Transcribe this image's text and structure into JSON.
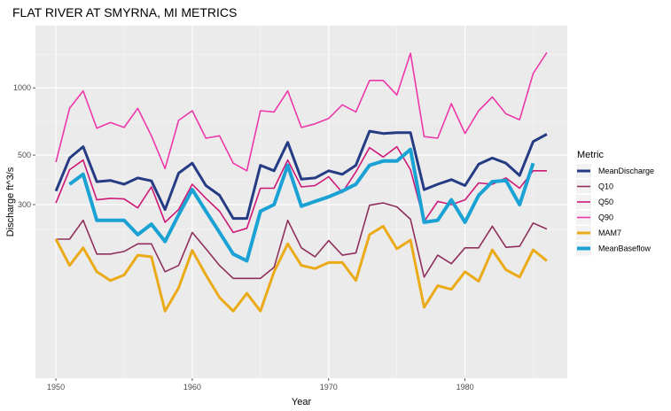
{
  "chart_data": {
    "type": "line",
    "title": "FLAT RIVER AT SMYRNA, MI  METRICS",
    "xlabel": "Year",
    "ylabel": "Discharge ft^3/s",
    "y_scale": "log",
    "xlim": [
      1948.5,
      1987.5
    ],
    "ylim": [
      50,
      1900
    ],
    "x_ticks": [
      1950,
      1960,
      1970,
      1980
    ],
    "y_ticks": [
      300,
      500,
      1000
    ],
    "grid": true,
    "legend_title": "Metric",
    "legend_position": "right",
    "series": [
      {
        "name": "MeanDischarge",
        "color": "#253B84",
        "width": 3,
        "x": [
          1950,
          1951,
          1952,
          1953,
          1954,
          1955,
          1956,
          1957,
          1958,
          1959,
          1960,
          1961,
          1962,
          1963,
          1964,
          1965,
          1966,
          1967,
          1968,
          1969,
          1970,
          1971,
          1972,
          1973,
          1974,
          1975,
          1976,
          1977,
          1978,
          1979,
          1980,
          1981,
          1982,
          1983,
          1984,
          1985,
          1986
        ],
        "values": [
          345,
          485,
          545,
          380,
          385,
          370,
          395,
          383,
          285,
          415,
          460,
          365,
          330,
          260,
          260,
          450,
          425,
          570,
          390,
          395,
          425,
          410,
          450,
          640,
          625,
          630,
          630,
          350,
          370,
          388,
          365,
          455,
          485,
          460,
          405,
          575,
          620
        ]
      },
      {
        "name": "Q10",
        "color": "#8F2F5C",
        "width": 1.6,
        "x": [
          1950,
          1951,
          1952,
          1953,
          1954,
          1955,
          1956,
          1957,
          1958,
          1959,
          1960,
          1961,
          1962,
          1963,
          1964,
          1965,
          1966,
          1967,
          1968,
          1969,
          1970,
          1971,
          1972,
          1973,
          1974,
          1975,
          1976,
          1977,
          1978,
          1979,
          1980,
          1981,
          1982,
          1983,
          1984,
          1985,
          1986
        ],
        "values": [
          210,
          210,
          255,
          180,
          180,
          185,
          200,
          200,
          150,
          160,
          225,
          190,
          160,
          140,
          140,
          140,
          157,
          255,
          192,
          175,
          207,
          178,
          182,
          298,
          305,
          293,
          258,
          142,
          178,
          163,
          192,
          192,
          240,
          193,
          195,
          248,
          233
        ]
      },
      {
        "name": "Q50",
        "color": "#CE1777",
        "width": 1.6,
        "x": [
          1950,
          1951,
          1952,
          1953,
          1954,
          1955,
          1956,
          1957,
          1958,
          1959,
          1960,
          1961,
          1962,
          1963,
          1964,
          1965,
          1966,
          1967,
          1968,
          1969,
          1970,
          1971,
          1972,
          1973,
          1974,
          1975,
          1976,
          1977,
          1978,
          1979,
          1980,
          1981,
          1982,
          1983,
          1984,
          1985,
          1986
        ],
        "values": [
          305,
          430,
          475,
          315,
          320,
          318,
          290,
          360,
          250,
          285,
          370,
          320,
          280,
          225,
          235,
          355,
          355,
          475,
          360,
          365,
          400,
          340,
          420,
          540,
          490,
          545,
          430,
          252,
          310,
          300,
          315,
          375,
          370,
          395,
          355,
          425,
          425
        ]
      },
      {
        "name": "Q90",
        "color": "#EE38AA",
        "width": 1.6,
        "x": [
          1950,
          1951,
          1952,
          1953,
          1954,
          1955,
          1956,
          1957,
          1958,
          1959,
          1960,
          1961,
          1962,
          1963,
          1964,
          1965,
          1966,
          1967,
          1968,
          1969,
          1970,
          1971,
          1972,
          1973,
          1974,
          1975,
          1976,
          1977,
          1978,
          1979,
          1980,
          1981,
          1982,
          1983,
          1984,
          1985,
          1986
        ],
        "values": [
          465,
          810,
          970,
          660,
          700,
          665,
          810,
          610,
          435,
          715,
          790,
          595,
          610,
          460,
          425,
          790,
          780,
          970,
          665,
          690,
          730,
          840,
          780,
          1080,
          1080,
          930,
          1430,
          605,
          595,
          850,
          625,
          790,
          910,
          765,
          720,
          1160,
          1440
        ]
      },
      {
        "name": "MAM7",
        "color": "#EBAA18",
        "width": 3,
        "x": [
          1950,
          1951,
          1952,
          1953,
          1954,
          1955,
          1956,
          1957,
          1958,
          1959,
          1960,
          1961,
          1962,
          1963,
          1964,
          1965,
          1966,
          1967,
          1968,
          1969,
          1970,
          1971,
          1972,
          1973,
          1974,
          1975,
          1976,
          1977,
          1978,
          1979,
          1980,
          1981,
          1982,
          1983,
          1984,
          1985,
          1986
        ],
        "values": [
          210,
          160,
          192,
          150,
          137,
          145,
          178,
          175,
          100,
          127,
          187,
          145,
          115,
          100,
          120,
          100,
          150,
          200,
          160,
          155,
          165,
          165,
          137,
          220,
          240,
          190,
          208,
          104,
          130,
          125,
          150,
          136,
          188,
          153,
          142,
          188,
          168
        ]
      },
      {
        "name": "MeanBaseflow",
        "color": "#1BA2D4",
        "width": 4,
        "x": [
          1951,
          1952,
          1953,
          1954,
          1955,
          1956,
          1957,
          1958,
          1959,
          1960,
          1961,
          1962,
          1963,
          1964,
          1965,
          1966,
          1967,
          1968,
          1969,
          1970,
          1971,
          1972,
          1973,
          1974,
          1975,
          1976,
          1977,
          1978,
          1979,
          1980,
          1981,
          1982,
          1983,
          1984,
          1985
        ],
        "values": [
          370,
          410,
          255,
          255,
          255,
          220,
          245,
          205,
          270,
          350,
          280,
          225,
          180,
          168,
          280,
          300,
          450,
          295,
          310,
          325,
          345,
          370,
          450,
          470,
          470,
          530,
          250,
          255,
          315,
          250,
          330,
          380,
          385,
          300,
          460
        ]
      }
    ]
  }
}
